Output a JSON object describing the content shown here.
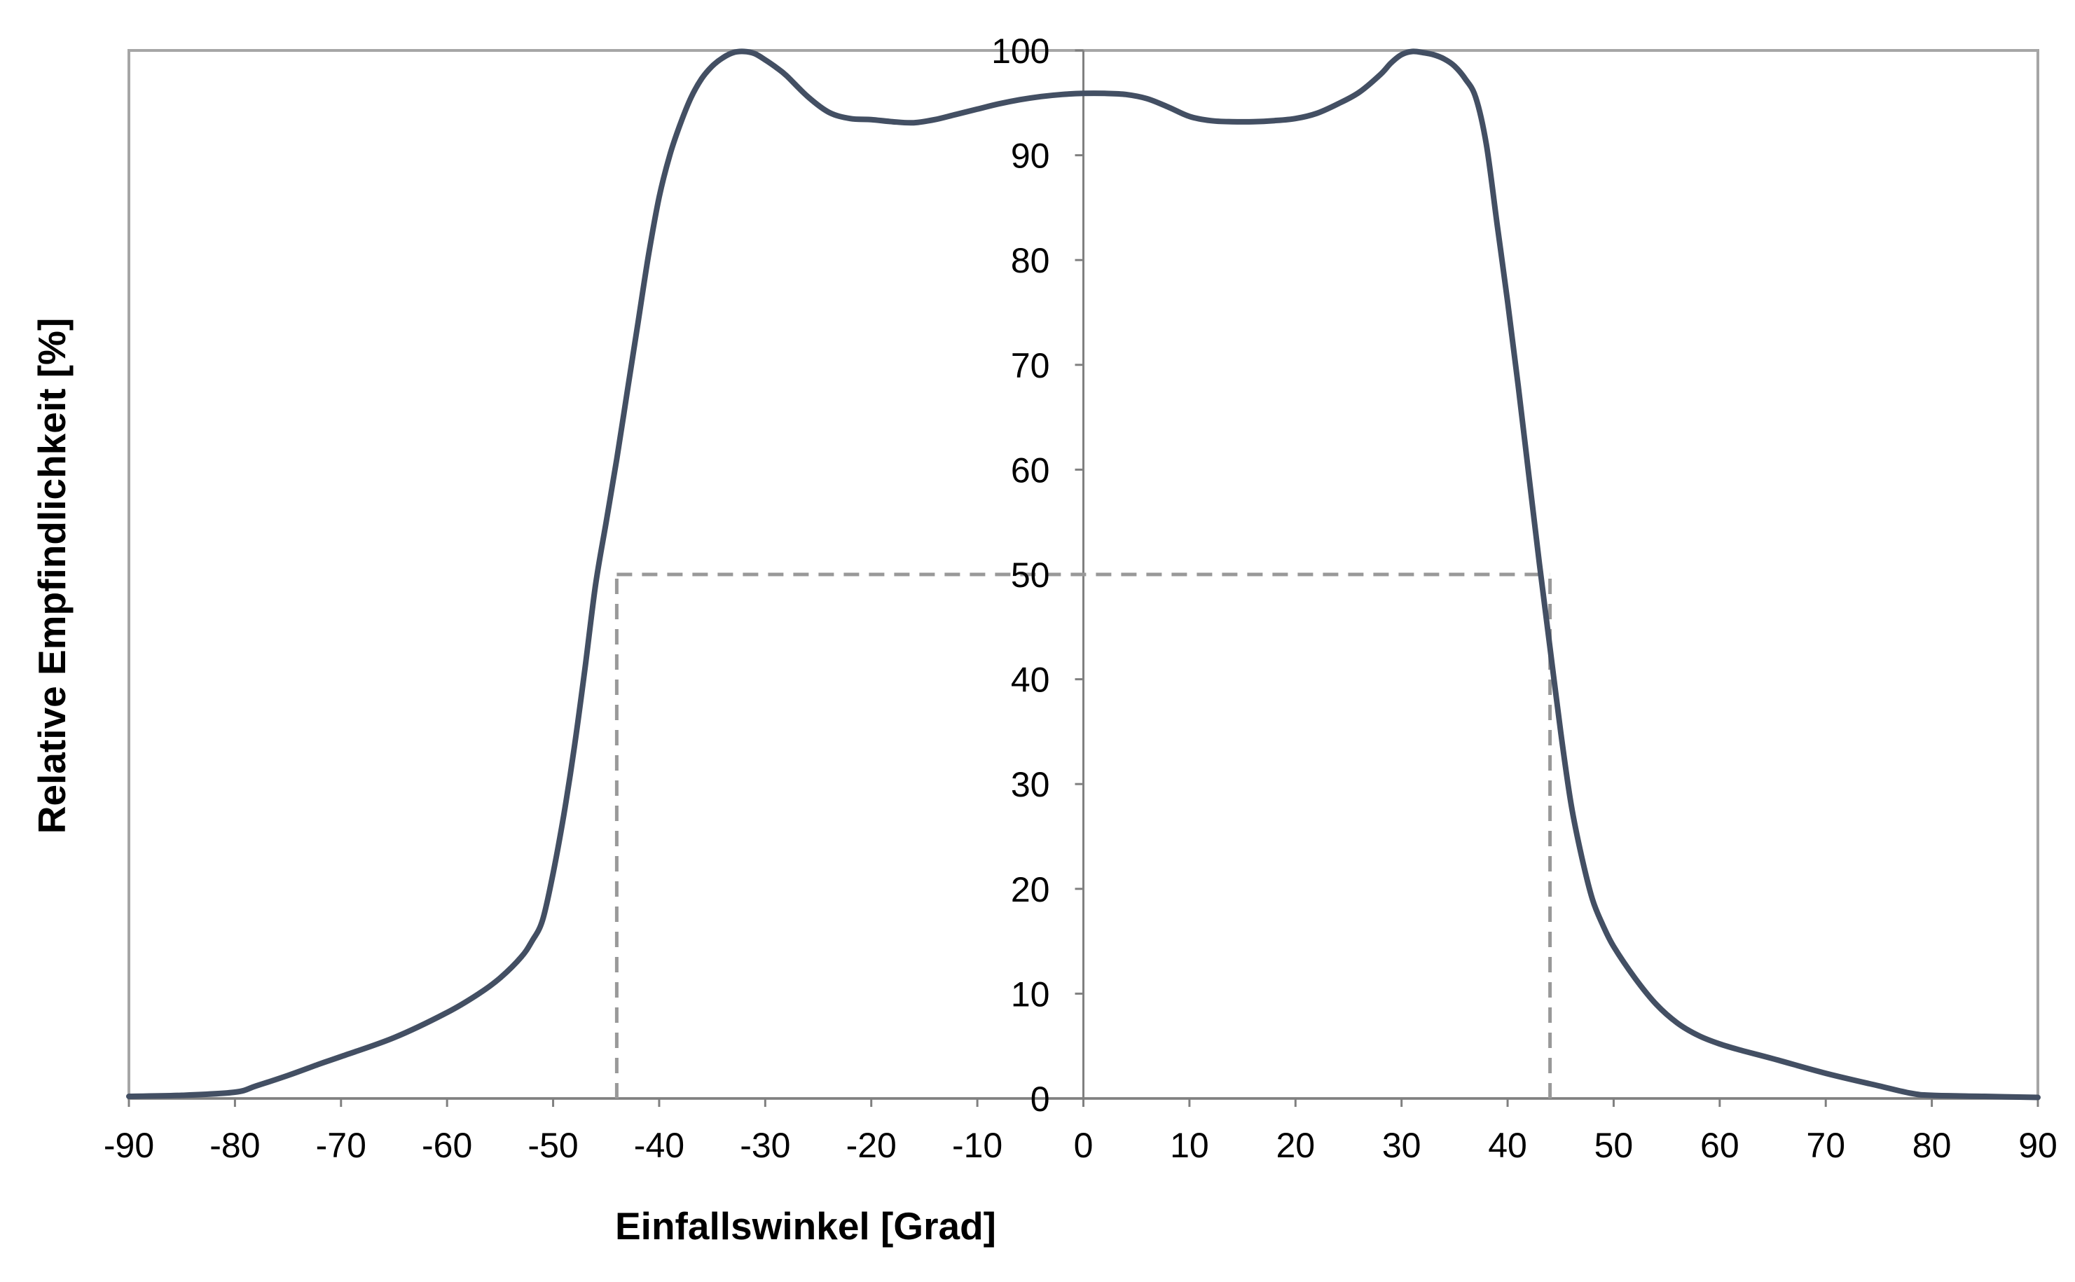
{
  "colors": {
    "curve": "#434F63",
    "frame": "#A6A6A6",
    "axis": "#808080",
    "dashed": "#999999",
    "text": "#000000"
  },
  "chart_data": {
    "type": "line",
    "title": "",
    "xlabel": "Einfallswinkel [Grad]",
    "ylabel": "Relative Empfindlichkeit [%]",
    "xlim": [
      -90,
      90
    ],
    "ylim": [
      0,
      100
    ],
    "x_ticks": [
      -90,
      -80,
      -70,
      -60,
      -50,
      -40,
      -30,
      -20,
      -10,
      0,
      10,
      20,
      30,
      40,
      50,
      60,
      70,
      80,
      90
    ],
    "y_ticks": [
      0,
      10,
      20,
      30,
      40,
      50,
      60,
      70,
      80,
      90,
      100
    ],
    "grid": false,
    "series": [
      {
        "x": [
          -90,
          -85,
          -80,
          -78,
          -75,
          -72,
          -70,
          -65,
          -60,
          -57,
          -55,
          -53,
          -52,
          -51,
          -50,
          -49,
          -48,
          -47,
          -46,
          -45,
          -44,
          -43,
          -42,
          -41,
          -40,
          -39,
          -38,
          -37,
          -36,
          -35,
          -34,
          -33,
          -32,
          -31,
          -30,
          -29,
          -28,
          -26,
          -24,
          -22,
          -20,
          -18,
          -16,
          -14,
          -12,
          -10,
          -8,
          -6,
          -4,
          -2,
          0,
          2,
          4,
          6,
          8,
          10,
          12,
          14,
          16,
          18,
          20,
          22,
          24,
          26,
          28,
          29,
          30,
          31,
          32,
          33,
          34,
          35,
          36,
          37,
          38,
          39,
          40,
          41,
          42,
          43,
          44,
          45,
          46,
          47,
          48,
          49,
          50,
          52,
          54,
          56,
          58,
          60,
          62,
          65,
          70,
          75,
          78,
          80,
          85,
          90
        ],
        "y": [
          0.2,
          0.3,
          0.6,
          1.2,
          2.2,
          3.3,
          4.0,
          5.8,
          8.2,
          10.0,
          11.5,
          13.5,
          15.0,
          17.0,
          21.5,
          27.0,
          33.5,
          41.0,
          49.0,
          55.0,
          61.0,
          67.5,
          74.0,
          80.5,
          86.0,
          90.0,
          93.0,
          95.5,
          97.3,
          98.5,
          99.3,
          99.8,
          99.9,
          99.7,
          99.1,
          98.4,
          97.6,
          95.6,
          94.1,
          93.5,
          93.4,
          93.2,
          93.1,
          93.4,
          93.9,
          94.4,
          94.9,
          95.3,
          95.6,
          95.8,
          95.9,
          95.9,
          95.8,
          95.4,
          94.6,
          93.7,
          93.3,
          93.2,
          93.2,
          93.3,
          93.5,
          94.0,
          94.9,
          96.0,
          97.7,
          98.8,
          99.6,
          99.9,
          99.8,
          99.6,
          99.2,
          98.5,
          97.3,
          95.5,
          91.0,
          83.5,
          76.0,
          68.0,
          59.5,
          51.0,
          43.0,
          35.0,
          28.0,
          23.0,
          19.0,
          16.5,
          14.5,
          11.5,
          9.0,
          7.2,
          6.0,
          5.2,
          4.6,
          3.8,
          2.4,
          1.2,
          0.5,
          0.3,
          0.2,
          0.1
        ]
      }
    ],
    "reference_lines": [
      {
        "style": "dashed",
        "x_from": -44,
        "x_to": 44,
        "y": 50
      },
      {
        "style": "dashed",
        "x": -44,
        "y_from": 0,
        "y_to": 50
      },
      {
        "style": "dashed",
        "x": 44,
        "y_from": 0,
        "y_to": 50
      }
    ]
  }
}
